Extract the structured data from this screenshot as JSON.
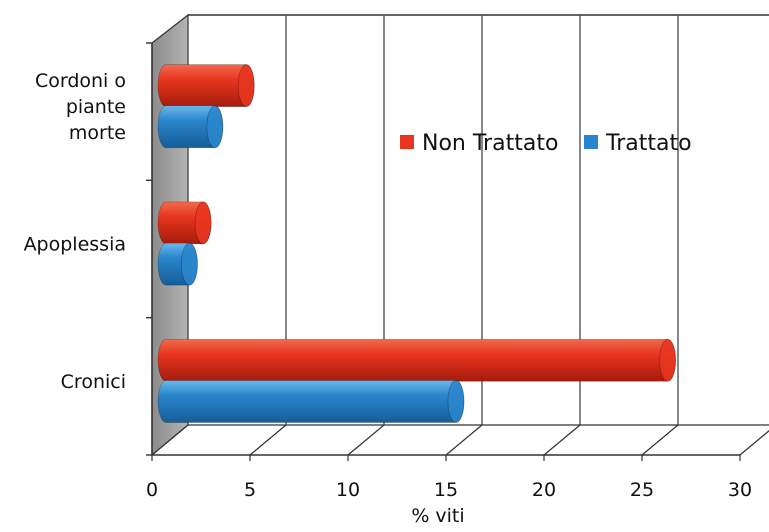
{
  "chart_data": {
    "type": "bar",
    "orientation": "horizontal",
    "style": "3d-cylinder",
    "categories": [
      "Cordoni o piante morte",
      "Apoplessia",
      "Cronici"
    ],
    "category_lines": [
      [
        "Cordoni o",
        "piante",
        "morte"
      ],
      [
        "Apoplessia"
      ],
      [
        "Cronici"
      ]
    ],
    "series": [
      {
        "name": "Non Trattato",
        "color": "#e8361f",
        "values": [
          4.5,
          2.3,
          26.0
        ]
      },
      {
        "name": "Trattato",
        "color": "#2a86cc",
        "values": [
          2.9,
          1.6,
          15.2
        ]
      }
    ],
    "xlabel": "% viti",
    "xlim": [
      0,
      30
    ],
    "xticks": [
      "0",
      "5",
      "10",
      "15",
      "20",
      "25",
      "30"
    ],
    "grid": true,
    "legend": "right"
  }
}
